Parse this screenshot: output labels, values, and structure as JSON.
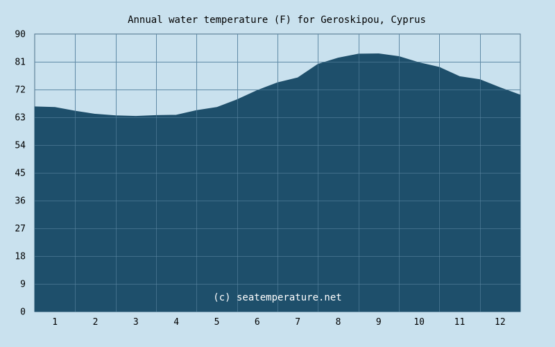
{
  "chart_data": {
    "type": "area",
    "title": "Annual water temperature (F) for Geroskipou, Cyprus",
    "xlabel": "",
    "ylabel": "",
    "categories": [
      "1",
      "2",
      "3",
      "4",
      "5",
      "6",
      "7",
      "8",
      "9",
      "10",
      "11",
      "12"
    ],
    "ylim": [
      0,
      90
    ],
    "yticks": [
      0,
      9,
      18,
      27,
      36,
      45,
      54,
      63,
      72,
      81,
      90
    ],
    "grid": true,
    "legend": "none",
    "colors": {
      "background": "#c9e1ee",
      "fill": "#1e4f6b",
      "grid": "#5f8aa6",
      "axis": "#4a6f88"
    },
    "series": [
      {
        "x": [
          0.0,
          0.5,
          1.0,
          1.5,
          2.0,
          2.5,
          3.0,
          3.5,
          4.0,
          4.5,
          5.0,
          5.5,
          6.0,
          6.5,
          7.0,
          7.5,
          8.0,
          8.5,
          9.0,
          9.5,
          10.0,
          10.5,
          11.0,
          11.5,
          12.0
        ],
        "values": [
          66.4,
          66.2,
          65.0,
          64.0,
          63.5,
          63.3,
          63.6,
          63.7,
          65.2,
          66.2,
          68.7,
          71.7,
          74.2,
          75.8,
          80.2,
          82.2,
          83.5,
          83.6,
          82.7,
          80.7,
          79.2,
          76.2,
          75.2,
          72.6,
          70.2
        ]
      }
    ],
    "end_value": 67.6,
    "annotation": "(c) seatemperature.net"
  }
}
